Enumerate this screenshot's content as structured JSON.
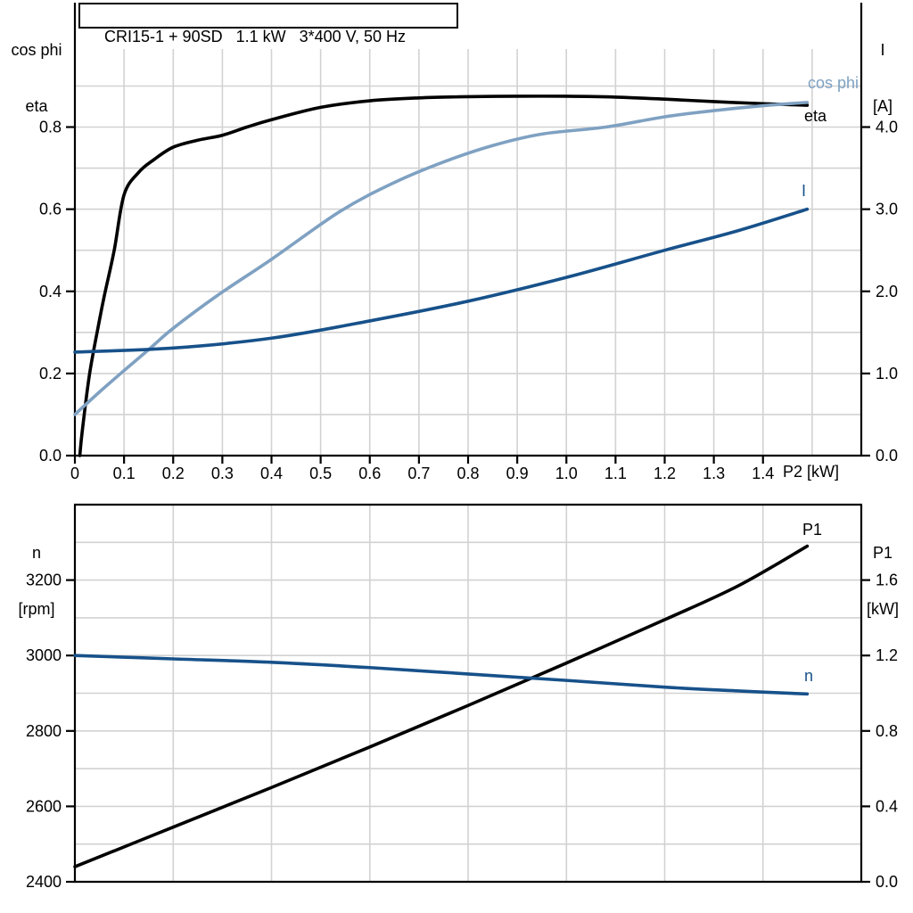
{
  "colors": {
    "black": "#000000",
    "dark_blue": "#17518A",
    "light_blue": "#7FA1C2",
    "grid": "#d2d2d2",
    "axis": "#000000"
  },
  "chart_data": [
    {
      "type": "line",
      "title": "CRI15-1 + 90SD   1.1 kW   3*400 V, 50 Hz",
      "x_axis": {
        "label": "P2 [kW]",
        "range": [
          0,
          1.6
        ],
        "tick_values": [
          0,
          0.1,
          0.2,
          0.3,
          0.4,
          0.5,
          0.6,
          0.7,
          0.8,
          0.9,
          1.0,
          1.1,
          1.2,
          1.3,
          1.4
        ],
        "tick_labels": [
          "0",
          "0.1",
          "0.2",
          "0.3",
          "0.4",
          "0.5",
          "0.6",
          "0.7",
          "0.8",
          "0.9",
          "1.0",
          "1.1",
          "1.2",
          "1.3",
          "1.4"
        ],
        "grid": {
          "from": 0.1,
          "to": 1.5,
          "step": 0.1
        }
      },
      "y_left": {
        "label_lines": [
          "cos phi",
          "eta"
        ],
        "range": [
          0,
          0.99
        ],
        "tick_values": [
          0,
          0.2,
          0.4,
          0.6,
          0.8
        ],
        "tick_labels": [
          "0.0",
          "0.2",
          "0.4",
          "0.6",
          "0.8"
        ],
        "grid": {
          "from": 0.1,
          "to": 0.9,
          "step": 0.1
        }
      },
      "y_right": {
        "label_lines": [
          "I",
          "[A]"
        ],
        "range": [
          0,
          4.95
        ],
        "tick_values": [
          0,
          1,
          2,
          3,
          4
        ],
        "tick_labels": [
          "0.0",
          "1.0",
          "2.0",
          "3.0",
          "4.0"
        ]
      },
      "series": [
        {
          "name": "eta",
          "label": "eta",
          "axis": "left",
          "color": "#000000",
          "points": [
            [
              0.01,
              0
            ],
            [
              0.015,
              0.06
            ],
            [
              0.03,
              0.2
            ],
            [
              0.05,
              0.33
            ],
            [
              0.06,
              0.39
            ],
            [
              0.08,
              0.5
            ],
            [
              0.1,
              0.635
            ],
            [
              0.13,
              0.69
            ],
            [
              0.16,
              0.72
            ],
            [
              0.2,
              0.751
            ],
            [
              0.25,
              0.768
            ],
            [
              0.3,
              0.78
            ],
            [
              0.35,
              0.8
            ],
            [
              0.4,
              0.818
            ],
            [
              0.5,
              0.848
            ],
            [
              0.6,
              0.864
            ],
            [
              0.7,
              0.871
            ],
            [
              0.8,
              0.874
            ],
            [
              0.9,
              0.875
            ],
            [
              1.0,
              0.875
            ],
            [
              1.1,
              0.873
            ],
            [
              1.2,
              0.868
            ],
            [
              1.3,
              0.862
            ],
            [
              1.4,
              0.857
            ],
            [
              1.49,
              0.853
            ]
          ]
        },
        {
          "name": "cos phi",
          "label": "cos phi",
          "axis": "left",
          "color": "#7FA1C2",
          "points": [
            [
              0,
              0.1
            ],
            [
              0.05,
              0.155
            ],
            [
              0.1,
              0.207
            ],
            [
              0.15,
              0.258
            ],
            [
              0.2,
              0.31
            ],
            [
              0.29,
              0.39
            ],
            [
              0.4,
              0.478
            ],
            [
              0.54,
              0.595
            ],
            [
              0.65,
              0.665
            ],
            [
              0.75,
              0.715
            ],
            [
              0.85,
              0.755
            ],
            [
              0.95,
              0.783
            ],
            [
              1.08,
              0.8
            ],
            [
              1.2,
              0.825
            ],
            [
              1.3,
              0.84
            ],
            [
              1.4,
              0.852
            ],
            [
              1.49,
              0.86
            ]
          ]
        },
        {
          "name": "I",
          "label": "I",
          "axis": "right",
          "color": "#17518A",
          "points": [
            [
              0,
              1.26
            ],
            [
              0.2,
              1.31
            ],
            [
              0.4,
              1.43
            ],
            [
              0.6,
              1.64
            ],
            [
              0.8,
              1.88
            ],
            [
              1.0,
              2.17
            ],
            [
              1.2,
              2.5
            ],
            [
              1.35,
              2.74
            ],
            [
              1.49,
              3.0
            ]
          ]
        }
      ]
    },
    {
      "type": "line",
      "title": "",
      "x_axis": {
        "label": "",
        "range": [
          0,
          1.6
        ],
        "tick_values": [],
        "tick_labels": [],
        "grid": {
          "from": 0.2,
          "to": 1.4,
          "step": 0.2
        }
      },
      "y_left": {
        "label_lines": [
          "n",
          "[rpm]"
        ],
        "range": [
          2400,
          3400
        ],
        "tick_values": [
          2400,
          2600,
          2800,
          3000,
          3200
        ],
        "tick_labels": [
          "2400",
          "2600",
          "2800",
          "3000",
          "3200"
        ],
        "grid": {
          "from": 2500,
          "to": 3300,
          "step": 100
        }
      },
      "y_right": {
        "label_lines": [
          "P1",
          "[kW]"
        ],
        "range": [
          0,
          2.0
        ],
        "tick_values": [
          0,
          0.4,
          0.8,
          1.2,
          1.6
        ],
        "tick_labels": [
          "0.0",
          "0.4",
          "0.8",
          "1.2",
          "1.6"
        ]
      },
      "series": [
        {
          "name": "P1",
          "label": "P1",
          "axis": "right",
          "color": "#000000",
          "points": [
            [
              0,
              0.08
            ],
            [
              0.2,
              0.29
            ],
            [
              0.4,
              0.5
            ],
            [
              0.6,
              0.715
            ],
            [
              0.8,
              0.935
            ],
            [
              1.0,
              1.16
            ],
            [
              1.2,
              1.39
            ],
            [
              1.35,
              1.57
            ],
            [
              1.49,
              1.78
            ]
          ]
        },
        {
          "name": "n",
          "label": "n",
          "axis": "left",
          "color": "#17518A",
          "points": [
            [
              0,
              3000
            ],
            [
              0.2,
              2991
            ],
            [
              0.4,
              2982
            ],
            [
              0.6,
              2968
            ],
            [
              0.8,
              2951
            ],
            [
              1.0,
              2934
            ],
            [
              1.2,
              2916
            ],
            [
              1.35,
              2906
            ],
            [
              1.49,
              2898
            ]
          ]
        }
      ]
    }
  ]
}
